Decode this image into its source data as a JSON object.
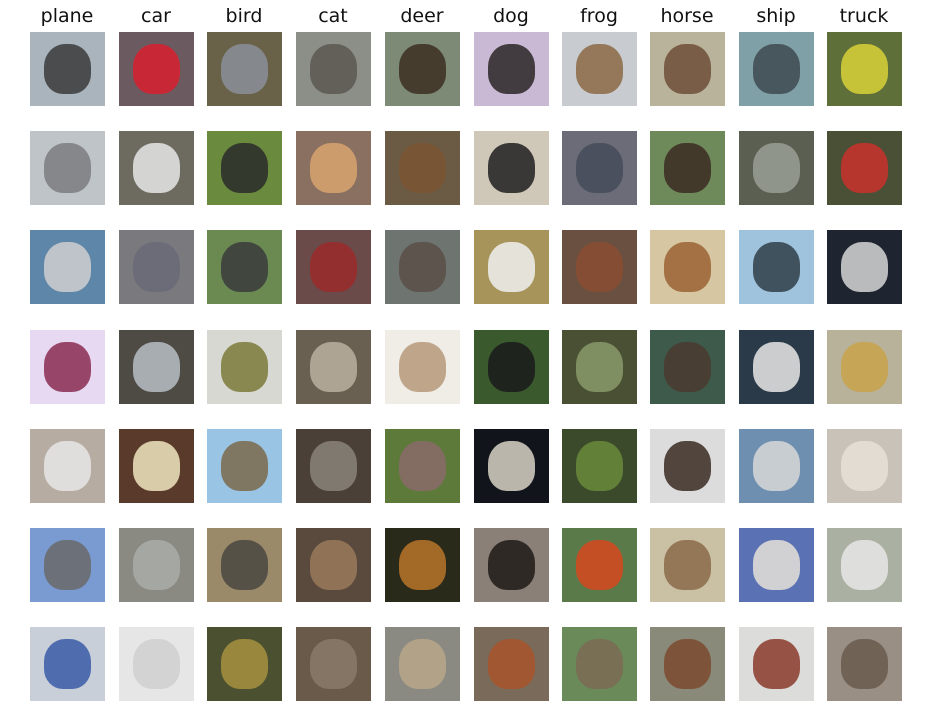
{
  "columns": [
    {
      "label": "plane",
      "key": "plane"
    },
    {
      "label": "car",
      "key": "car"
    },
    {
      "label": "bird",
      "key": "bird"
    },
    {
      "label": "cat",
      "key": "cat"
    },
    {
      "label": "deer",
      "key": "deer"
    },
    {
      "label": "dog",
      "key": "dog"
    },
    {
      "label": "frog",
      "key": "frog"
    },
    {
      "label": "horse",
      "key": "horse"
    },
    {
      "label": "ship",
      "key": "ship"
    },
    {
      "label": "truck",
      "key": "truck"
    }
  ],
  "rows": 7,
  "thumbnails": [
    [
      {
        "bg": "#aab4bd",
        "subj": "#3a3a3a"
      },
      {
        "bg": "#6b5a5f",
        "subj": "#d8202f"
      },
      {
        "bg": "#6a6248",
        "subj": "#8a8f9a"
      },
      {
        "bg": "#8c8f88",
        "subj": "#5a5850"
      },
      {
        "bg": "#7d8a75",
        "subj": "#3b2e22"
      },
      {
        "bg": "#c9b9d4",
        "subj": "#2a2626"
      },
      {
        "bg": "#c8cbcf",
        "subj": "#8b6a44"
      },
      {
        "bg": "#b8b39a",
        "subj": "#6d4e38"
      },
      {
        "bg": "#7fa0a6",
        "subj": "#3d4a50"
      },
      {
        "bg": "#5f6f3a",
        "subj": "#d8d23a"
      }
    ],
    [
      {
        "bg": "#bfc4c8",
        "subj": "#7a7c80"
      },
      {
        "bg": "#6d6a60",
        "subj": "#e6e6e6"
      },
      {
        "bg": "#6a8a3e",
        "subj": "#2a2a2a"
      },
      {
        "bg": "#8a7060",
        "subj": "#d7a36f"
      },
      {
        "bg": "#6b5a44",
        "subj": "#7a5532"
      },
      {
        "bg": "#cfc7b8",
        "subj": "#1f1f1f"
      },
      {
        "bg": "#6b6c78",
        "subj": "#444b58"
      },
      {
        "bg": "#6f8a5a",
        "subj": "#3b2a22"
      },
      {
        "bg": "#5a5f52",
        "subj": "#9a9f96"
      },
      {
        "bg": "#4a5036",
        "subj": "#c9302a"
      }
    ],
    [
      {
        "bg": "#5e86a8",
        "subj": "#cfcfcf"
      },
      {
        "bg": "#7a7a7e",
        "subj": "#6a6a78"
      },
      {
        "bg": "#6b8a52",
        "subj": "#3a3a3c"
      },
      {
        "bg": "#6b4a4a",
        "subj": "#9a2a2a"
      },
      {
        "bg": "#6e7470",
        "subj": "#5a5046"
      },
      {
        "bg": "#a6945a",
        "subj": "#f0f0f0"
      },
      {
        "bg": "#6a5040",
        "subj": "#8a4e32"
      },
      {
        "bg": "#d6c7a2",
        "subj": "#9a6232"
      },
      {
        "bg": "#9fc2dd",
        "subj": "#2e3e48"
      },
      {
        "bg": "#1e2430",
        "subj": "#d6d6d6"
      }
    ],
    [
      {
        "bg": "#e7d9f2",
        "subj": "#8a2a52"
      },
      {
        "bg": "#4e4a44",
        "subj": "#b8bec6"
      },
      {
        "bg": "#d8d8d2",
        "subj": "#7a7a3a"
      },
      {
        "bg": "#6a6052",
        "subj": "#b8b0a0"
      },
      {
        "bg": "#f0ece6",
        "subj": "#b69a7a"
      },
      {
        "bg": "#3a5a2e",
        "subj": "#1a1a1a"
      },
      {
        "bg": "#4a5034",
        "subj": "#8a9a6a"
      },
      {
        "bg": "#3e5a4a",
        "subj": "#4a3a30"
      },
      {
        "bg": "#2a3a48",
        "subj": "#e8e8e8"
      },
      {
        "bg": "#b8b29a",
        "subj": "#c9a24a"
      }
    ],
    [
      {
        "bg": "#b6aca2",
        "subj": "#e6e6e6"
      },
      {
        "bg": "#5a3a2a",
        "subj": "#f0e6c0"
      },
      {
        "bg": "#9ac4e4",
        "subj": "#7a6a4a"
      },
      {
        "bg": "#4a4038",
        "subj": "#8a847a"
      },
      {
        "bg": "#5e7a3a",
        "subj": "#8a6a6a"
      },
      {
        "bg": "#12141c",
        "subj": "#d8d2c4"
      },
      {
        "bg": "#3a4a2a",
        "subj": "#6a8a3a"
      },
      {
        "bg": "#dcdcdc",
        "subj": "#3a2a22"
      },
      {
        "bg": "#6f8fb0",
        "subj": "#d8d8d8"
      },
      {
        "bg": "#c9c2b8",
        "subj": "#e8e0d6"
      }
    ],
    [
      {
        "bg": "#7a9ad2",
        "subj": "#6a6a6a"
      },
      {
        "bg": "#8a8a82",
        "subj": "#a8aca8"
      },
      {
        "bg": "#9a8a6a",
        "subj": "#4a4640"
      },
      {
        "bg": "#5a4a3e",
        "subj": "#9a7a5a"
      },
      {
        "bg": "#2a2a1a",
        "subj": "#b8762a"
      },
      {
        "bg": "#8a8078",
        "subj": "#1e1a18"
      },
      {
        "bg": "#5a7a4a",
        "subj": "#d8481e"
      },
      {
        "bg": "#cac0a4",
        "subj": "#8a6a4a"
      },
      {
        "bg": "#5a72b4",
        "subj": "#e6e0d8"
      },
      {
        "bg": "#aab0a2",
        "subj": "#e8e8e8"
      }
    ],
    [
      {
        "bg": "#c8cfd8",
        "subj": "#3a5aa8"
      },
      {
        "bg": "#e6e6e6",
        "subj": "#cfcfcf"
      },
      {
        "bg": "#4a5030",
        "subj": "#a69040"
      },
      {
        "bg": "#6a5a4a",
        "subj": "#8a7a6a"
      },
      {
        "bg": "#8a8a82",
        "subj": "#b8a68a"
      },
      {
        "bg": "#7a6a5a",
        "subj": "#a8542a"
      },
      {
        "bg": "#6a8a5a",
        "subj": "#7a6a54"
      },
      {
        "bg": "#8a8a7a",
        "subj": "#7a4a2e"
      },
      {
        "bg": "#dcdcda",
        "subj": "#8a3a2a"
      },
      {
        "bg": "#9a8f84",
        "subj": "#6a5a4e"
      }
    ]
  ]
}
